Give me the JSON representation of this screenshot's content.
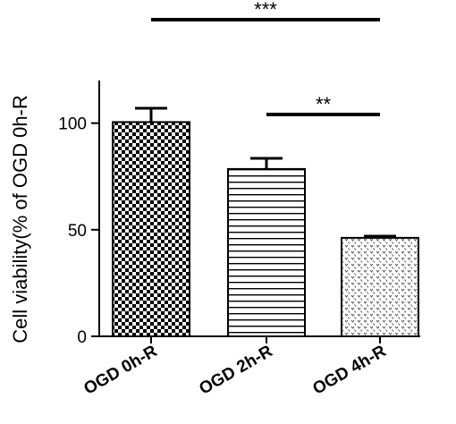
{
  "chart_data": {
    "type": "bar",
    "categories": [
      "OGD 0h-R",
      "OGD 2h-R",
      "OGD 4h-R"
    ],
    "values": [
      100.5,
      78.5,
      46.2
    ],
    "errors": [
      6.5,
      5.0,
      0.8
    ],
    "patterns": [
      "checker",
      "hlines",
      "dots"
    ],
    "ylabel": "Cell viability(% of OGD 0h-R",
    "ylim": [
      0,
      120
    ],
    "yticks": [
      0,
      50,
      100
    ],
    "significance": [
      {
        "from": 0,
        "to": 2,
        "label": "***"
      },
      {
        "from": 1,
        "to": 2,
        "label": "**"
      }
    ],
    "grid": false
  }
}
